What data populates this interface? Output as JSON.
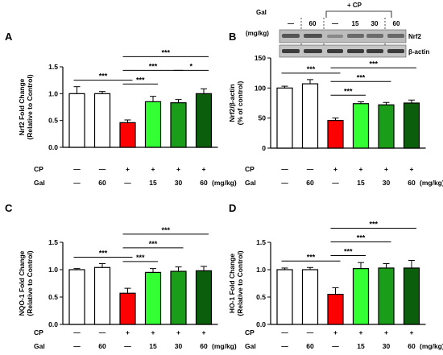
{
  "colors": {
    "control": "#ffffff",
    "gal_only": "#ffffff",
    "cp": "#ff0000",
    "cp_gal15": "#33ff33",
    "cp_gal30": "#1a9e1a",
    "cp_gal60": "#0b5e0b",
    "axis": "#000000"
  },
  "conditions": {
    "row1_label": "CP",
    "row2_label": "Gal",
    "row1": [
      "—",
      "—",
      "+",
      "+",
      "+",
      "+"
    ],
    "row2": [
      "—",
      "60",
      "—",
      "15",
      "30",
      "60"
    ],
    "unit": "(mg/kg)"
  },
  "blot": {
    "gal_label": "Gal",
    "unit_label": "(mg/kg)",
    "cp_label": "+ CP",
    "lane_labels": [
      "—",
      "60",
      "—",
      "15",
      "30",
      "60"
    ],
    "band_labels": [
      "Nrf2",
      "β-actin"
    ]
  },
  "chart_data": [
    {
      "panel": "A",
      "type": "bar",
      "ylabel_line1": "Nrf2 Fold Change",
      "ylabel_line2": "(Relative to Control)",
      "ylim": [
        0.0,
        1.5
      ],
      "yticks": [
        0.0,
        0.5,
        1.0,
        1.5
      ],
      "ytick_labels": [
        "0.0",
        "0.5",
        "1.0",
        "1.5"
      ],
      "values": [
        1.0,
        1.0,
        0.46,
        0.85,
        0.83,
        1.0
      ],
      "errors": [
        0.13,
        0.04,
        0.05,
        0.1,
        0.06,
        0.09
      ],
      "significance": [
        {
          "from": 0,
          "to": 2,
          "label": "***"
        },
        {
          "from": 2,
          "to": 3,
          "label": "***"
        },
        {
          "from": 2,
          "to": 4,
          "label": "***"
        },
        {
          "from": 2,
          "to": 5,
          "label": "***"
        },
        {
          "from": 4,
          "to": 5,
          "label": "*"
        }
      ]
    },
    {
      "panel": "B",
      "type": "bar",
      "ylabel_line1": "Nrf2/β-actin",
      "ylabel_line2": "(% of control)",
      "ylim": [
        0,
        150
      ],
      "yticks": [
        0,
        50,
        100,
        150
      ],
      "ytick_labels": [
        "0",
        "50",
        "100",
        "150"
      ],
      "values": [
        100,
        107,
        46,
        74,
        72,
        75
      ],
      "errors": [
        3,
        7,
        4,
        3,
        4,
        5
      ],
      "significance": [
        {
          "from": 0,
          "to": 2,
          "label": "***"
        },
        {
          "from": 2,
          "to": 3,
          "label": "***"
        },
        {
          "from": 2,
          "to": 4,
          "label": "***"
        },
        {
          "from": 2,
          "to": 5,
          "label": "***"
        }
      ]
    },
    {
      "panel": "C",
      "type": "bar",
      "ylabel_line1": "NQO-1 Fold Change",
      "ylabel_line2": "(Relative to Control)",
      "ylim": [
        0.0,
        1.5
      ],
      "yticks": [
        0.0,
        0.5,
        1.0,
        1.5
      ],
      "ytick_labels": [
        "0.0",
        "0.5",
        "1.0",
        "1.5"
      ],
      "values": [
        1.0,
        1.04,
        0.57,
        0.95,
        0.97,
        0.98
      ],
      "errors": [
        0.02,
        0.07,
        0.09,
        0.07,
        0.08,
        0.08
      ],
      "significance": [
        {
          "from": 0,
          "to": 2,
          "label": "***"
        },
        {
          "from": 2,
          "to": 3,
          "label": "***"
        },
        {
          "from": 2,
          "to": 4,
          "label": "***"
        },
        {
          "from": 2,
          "to": 5,
          "label": "***"
        }
      ]
    },
    {
      "panel": "D",
      "type": "bar",
      "ylabel_line1": "HO-1 Fold Change",
      "ylabel_line2": "(Relative to Control)",
      "ylim": [
        0.0,
        1.5
      ],
      "yticks": [
        0.0,
        0.5,
        1.0,
        1.5
      ],
      "ytick_labels": [
        "0.0",
        "0.5",
        "1.0",
        "1.5"
      ],
      "values": [
        1.0,
        1.0,
        0.55,
        1.02,
        1.03,
        1.03
      ],
      "errors": [
        0.03,
        0.04,
        0.12,
        0.11,
        0.08,
        0.14
      ],
      "significance": [
        {
          "from": 0,
          "to": 2,
          "label": "***"
        },
        {
          "from": 2,
          "to": 3,
          "label": "***"
        },
        {
          "from": 2,
          "to": 4,
          "label": "***"
        },
        {
          "from": 2,
          "to": 5,
          "label": "***"
        }
      ]
    }
  ]
}
